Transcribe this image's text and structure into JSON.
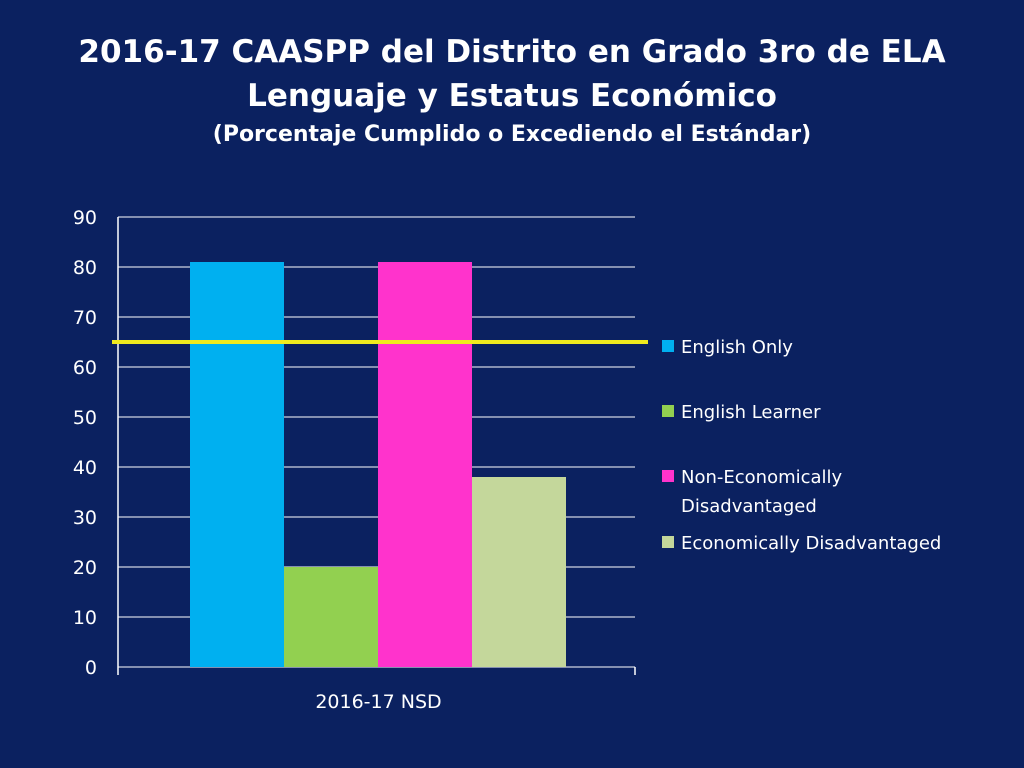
{
  "slide": {
    "title_line1": "2016-17 CAASPP del Distrito en Grado 3ro de ELA",
    "title_line2": "Lenguaje y Estatus Económico",
    "subtitle": "(Porcentaje Cumplido o Excediendo el Estándar)"
  },
  "colors": {
    "background": "#0b2160",
    "gridline": "#ffffff",
    "target_line": "#f0ea1e",
    "english_only": "#00b0f0",
    "english_learner": "#92d050",
    "non_econ_disadv": "#ff33cc",
    "econ_disadv": "#c4d79b"
  },
  "chart_data": {
    "type": "bar",
    "title": "2016-17 CAASPP del Distrito en Grado 3ro de ELA Lenguaje y Estatus Económico",
    "subtitle": "(Porcentaje Cumplido o Excediendo el Estándar)",
    "categories": [
      "2016-17 NSD"
    ],
    "series": [
      {
        "name": "English Only",
        "values": [
          81
        ],
        "color": "#00b0f0"
      },
      {
        "name": "English Learner",
        "values": [
          20
        ],
        "color": "#92d050"
      },
      {
        "name": "Non-Economically Disadvantaged",
        "values": [
          81
        ],
        "color": "#ff33cc"
      },
      {
        "name": "Economically Disadvantaged",
        "values": [
          38
        ],
        "color": "#c4d79b"
      }
    ],
    "legend_labels": [
      [
        "English Only"
      ],
      [
        "English Learner"
      ],
      [
        "Non-Economically",
        "Disadvantaged"
      ],
      [
        "Economically Disadvantaged"
      ]
    ],
    "reference_line": {
      "value": 65,
      "color": "#f0ea1e"
    },
    "yticks": [
      0,
      10,
      20,
      30,
      40,
      50,
      60,
      70,
      80,
      90
    ],
    "ylim": [
      0,
      90
    ],
    "grid": true,
    "legend_position": "right"
  }
}
